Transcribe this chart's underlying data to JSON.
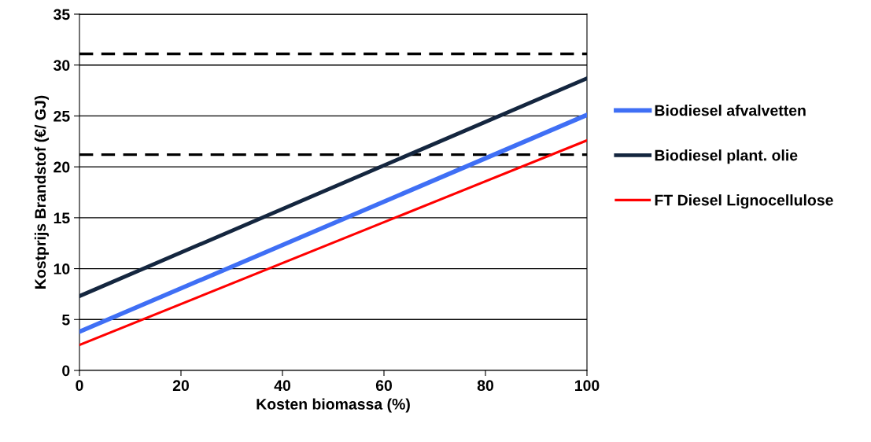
{
  "chart_data": {
    "type": "line",
    "xlabel": "Kosten biomassa (%)",
    "ylabel": "Kostprijs Brandstof (€/ GJ)",
    "x": [
      0,
      100
    ],
    "series": [
      {
        "name": "Biodiesel afvalvetten",
        "color": "#3f6ff5",
        "values": [
          3.8,
          25.1
        ]
      },
      {
        "name": "Biodiesel plant. olie",
        "color": "#14263f",
        "values": [
          7.3,
          28.7
        ]
      },
      {
        "name": "FT Diesel Lignocellulose",
        "color": "#ff0000",
        "values": [
          2.5,
          22.6
        ]
      }
    ],
    "ref_lines": [
      {
        "axis": "y",
        "value": 31.1,
        "color": "#000000",
        "line_style": "dashed"
      },
      {
        "axis": "y",
        "value": 21.2,
        "color": "#000000",
        "line_style": "dashed"
      }
    ],
    "xlim": [
      0,
      100
    ],
    "xticks": [
      0,
      20,
      40,
      60,
      80,
      100
    ],
    "ylim": [
      0,
      35
    ],
    "yticks": [
      0,
      5,
      10,
      15,
      20,
      25,
      30,
      35
    ],
    "grid": "y",
    "legend": "right",
    "marker": "none",
    "line_style": "solid"
  }
}
